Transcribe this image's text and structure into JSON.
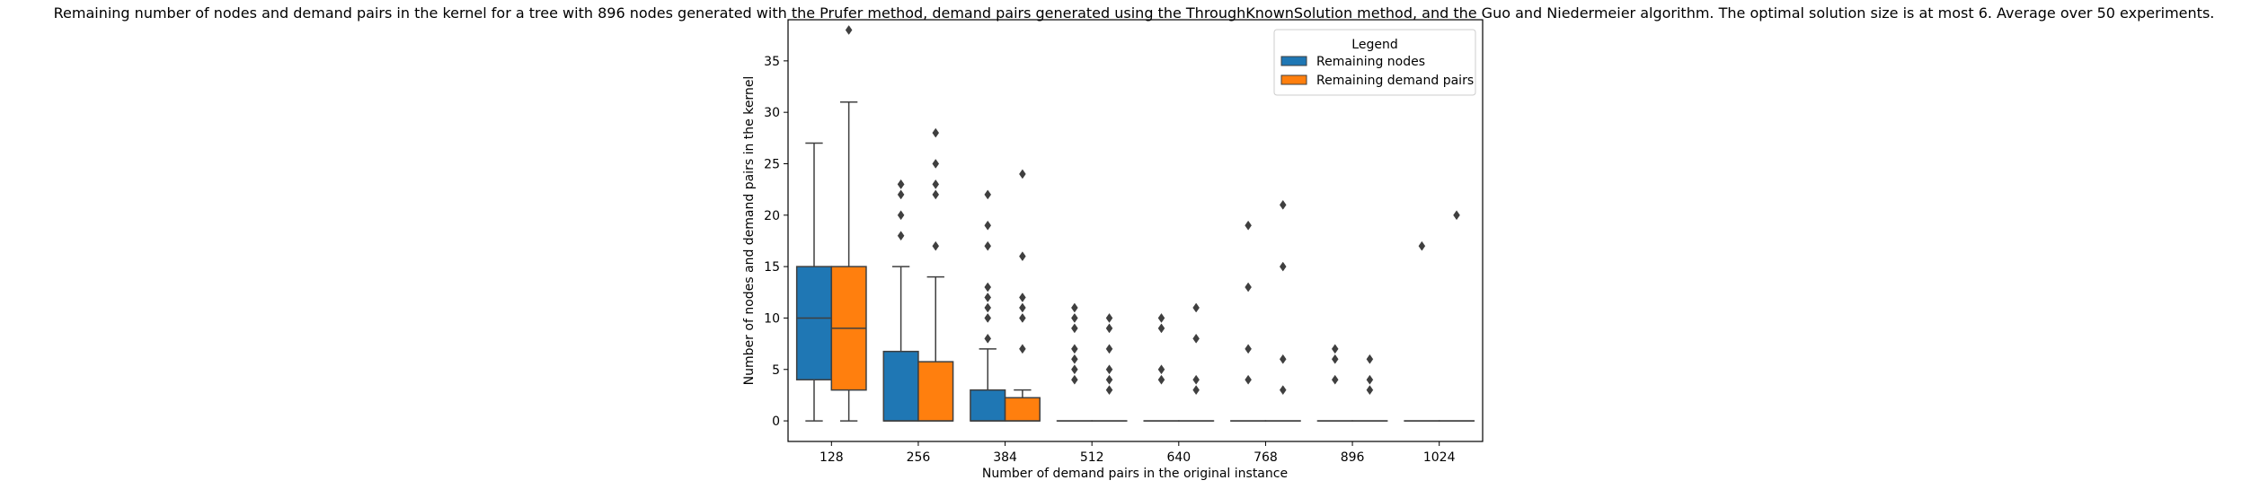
{
  "chart_data": {
    "type": "boxplot",
    "title": "Remaining number of nodes and demand pairs in the kernel for a tree with 896 nodes generated with the Prufer method, demand pairs generated using the ThroughKnownSolution method, and the Guo and Niedermeier algorithm. The optimal solution size is at most 6. Average over 50 experiments.",
    "xlabel": "Number of demand pairs in the original instance",
    "ylabel": "Number of nodes and demand pairs in the kernel",
    "categories": [
      "128",
      "256",
      "384",
      "512",
      "640",
      "768",
      "896",
      "1024"
    ],
    "ylim": [
      -2,
      39
    ],
    "yticks": [
      0,
      5,
      10,
      15,
      20,
      25,
      30,
      35
    ],
    "grid": false,
    "legend": {
      "title": "Legend",
      "placement": "upper right",
      "entries": [
        "Remaining nodes",
        "Remaining demand pairs"
      ]
    },
    "series": [
      {
        "name": "Remaining nodes",
        "color": "#1f77b4",
        "boxes": [
          {
            "q1": 4,
            "median": 10,
            "q3": 15,
            "whisker_low": 0,
            "whisker_high": 27,
            "outliers": []
          },
          {
            "q1": 0,
            "median": 0,
            "q3": 6.75,
            "whisker_low": 0,
            "whisker_high": 15,
            "outliers": [
              18,
              20,
              22,
              23,
              23
            ]
          },
          {
            "q1": 0,
            "median": 0,
            "q3": 3,
            "whisker_low": 0,
            "whisker_high": 7,
            "outliers": [
              8,
              10,
              11,
              12,
              13,
              17,
              19,
              22
            ]
          },
          {
            "q1": 0,
            "median": 0,
            "q3": 0,
            "whisker_low": 0,
            "whisker_high": 0,
            "outliers": [
              4,
              5,
              6,
              7,
              9,
              10,
              11
            ]
          },
          {
            "q1": 0,
            "median": 0,
            "q3": 0,
            "whisker_low": 0,
            "whisker_high": 0,
            "outliers": [
              4,
              5,
              9,
              10
            ]
          },
          {
            "q1": 0,
            "median": 0,
            "q3": 0,
            "whisker_low": 0,
            "whisker_high": 0,
            "outliers": [
              4,
              7,
              13,
              19
            ]
          },
          {
            "q1": 0,
            "median": 0,
            "q3": 0,
            "whisker_low": 0,
            "whisker_high": 0,
            "outliers": [
              4,
              6,
              7
            ]
          },
          {
            "q1": 0,
            "median": 0,
            "q3": 0,
            "whisker_low": 0,
            "whisker_high": 0,
            "outliers": [
              17
            ]
          }
        ]
      },
      {
        "name": "Remaining demand pairs",
        "color": "#ff7f0e",
        "boxes": [
          {
            "q1": 3,
            "median": 9,
            "q3": 15,
            "whisker_low": 0,
            "whisker_high": 31,
            "outliers": [
              38
            ]
          },
          {
            "q1": 0,
            "median": 0,
            "q3": 5.75,
            "whisker_low": 0,
            "whisker_high": 14,
            "outliers": [
              17,
              22,
              23,
              25,
              28
            ]
          },
          {
            "q1": 0,
            "median": 0,
            "q3": 2.25,
            "whisker_low": 0,
            "whisker_high": 3,
            "outliers": [
              7,
              10,
              11,
              12,
              16,
              24
            ]
          },
          {
            "q1": 0,
            "median": 0,
            "q3": 0,
            "whisker_low": 0,
            "whisker_high": 0,
            "outliers": [
              3,
              4,
              5,
              7,
              9,
              10
            ]
          },
          {
            "q1": 0,
            "median": 0,
            "q3": 0,
            "whisker_low": 0,
            "whisker_high": 0,
            "outliers": [
              3,
              4,
              8,
              11
            ]
          },
          {
            "q1": 0,
            "median": 0,
            "q3": 0,
            "whisker_low": 0,
            "whisker_high": 0,
            "outliers": [
              3,
              6,
              15,
              21
            ]
          },
          {
            "q1": 0,
            "median": 0,
            "q3": 0,
            "whisker_low": 0,
            "whisker_high": 0,
            "outliers": [
              3,
              4,
              6
            ]
          },
          {
            "q1": 0,
            "median": 0,
            "q3": 0,
            "whisker_low": 0,
            "whisker_high": 0,
            "outliers": [
              20
            ]
          }
        ]
      }
    ]
  }
}
